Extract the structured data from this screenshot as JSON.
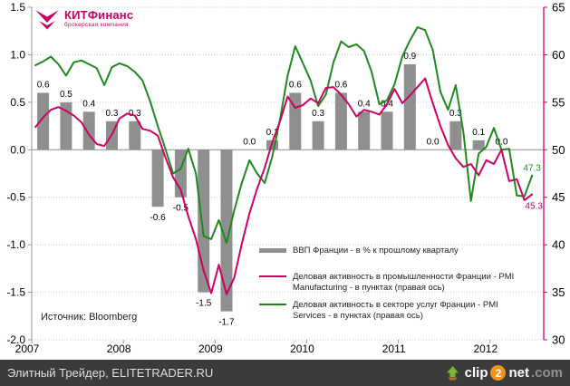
{
  "logo": {
    "brand_bold": "КИТ",
    "brand_rest": "Финанс",
    "tagline": "брокерская компания",
    "color": "#c60063"
  },
  "source_note": "Источник: Bloomberg",
  "footer": {
    "left_text": "Элитный Трейдер, ELITETRADER.RU",
    "clip2net": {
      "part1": "clip",
      "part2": "2",
      "part3": "net",
      "part4": ".com"
    }
  },
  "colors": {
    "bar": "#8f8f8f",
    "manufacturing": "#cf0063",
    "services": "#1e8a1e",
    "grid": "#c9c9c9",
    "axis": "#999999",
    "zero_line": "#8c8c8c",
    "footer_bg": "#3b3b3b",
    "logo": "#c60063",
    "clip2net_orange": "#ef931d"
  },
  "legend": [
    {
      "type": "bar",
      "color": "#8f8f8f",
      "label": "ВВП Франции - в % к прошлому кварталу"
    },
    {
      "type": "line",
      "color": "#cf0063",
      "label": "Деловая активность в промышленности Франции - PMI Manufacturing - в пунктах (правая ось)"
    },
    {
      "type": "line",
      "color": "#1e8a1e",
      "label": "Деловая активность в секторе услуг Франции - PMI Services - в пунктах (правая ось)"
    }
  ],
  "chart_data": {
    "type": "combo-bar-line",
    "x_axis": {
      "years": [
        "2007",
        "2008",
        "2009",
        "2010",
        "2011",
        "2012"
      ],
      "months_per_year": 12,
      "n_months": 66
    },
    "left_axis": {
      "ticks": [
        "1.5",
        "1.0",
        "0.5",
        "0.0",
        "-0.5",
        "-1.0",
        "-1.5",
        "-2.0"
      ],
      "min": -2.0,
      "max": 1.5
    },
    "right_axis": {
      "ticks": [
        "65",
        "60",
        "55",
        "50",
        "45",
        "40",
        "35",
        "30"
      ],
      "min": 30,
      "max": 65
    },
    "grid": "dotted horizontal lines, solid line at 0.0 / 50",
    "bars": {
      "name": "ВВП Франции - в % к прошлому кварталу",
      "period": "quarterly",
      "values": [
        0.6,
        0.5,
        0.4,
        0.3,
        0.3,
        -0.6,
        -0.5,
        -1.5,
        -1.7,
        0.0,
        0.1,
        0.6,
        0.3,
        0.6,
        0.4,
        0.4,
        0.9,
        0.0,
        0.3,
        0.1,
        0.0
      ],
      "labels": [
        "0.6",
        "0.5",
        "0.4",
        "0.3",
        "0.3",
        "-0.6",
        "-0.5",
        "-1.5",
        "-1.7",
        "0.0",
        "0.1",
        "0.6",
        "0.3",
        "0.6",
        "0.4",
        "0.4",
        "0.9",
        "0.0",
        "0.3",
        "0.1",
        "0.0"
      ]
    },
    "line_manufacturing": {
      "name": "Деловая активность в промышленности Франции - PMI Manufacturing - в пунктах (правая ось)",
      "axis": "right",
      "end_label": "45.3",
      "monthly_values": [
        52.4,
        53.4,
        54.2,
        54.5,
        54.1,
        53.6,
        52.9,
        51.6,
        50.6,
        50.4,
        51.6,
        53.3,
        53.8,
        53.6,
        52.2,
        52.0,
        51.5,
        49.2,
        47.1,
        45.8,
        43.0,
        40.6,
        37.3,
        34.9,
        37.9,
        34.8,
        36.5,
        40.1,
        43.3,
        45.9,
        48.1,
        50.8,
        53.0,
        55.6,
        54.4,
        54.7,
        55.4,
        54.9,
        56.5,
        56.6,
        55.8,
        54.8,
        53.5,
        54.2,
        54.0,
        53.7,
        54.8,
        56.4,
        54.9,
        55.7,
        56.6,
        57.5,
        54.9,
        52.5,
        50.5,
        49.1,
        48.2,
        48.5,
        47.3,
        48.9,
        48.5,
        50.0,
        46.7,
        46.9,
        44.7,
        45.3
      ]
    },
    "line_services": {
      "name": "Деловая активность в секторе услуг Франции - PMI Services - в пунктах (правая ось)",
      "axis": "right",
      "end_label": "47.3",
      "monthly_values": [
        58.9,
        59.3,
        59.8,
        59.0,
        57.8,
        59.2,
        59.4,
        59.0,
        58.6,
        56.8,
        58.7,
        59.1,
        58.8,
        58.2,
        57.3,
        55.1,
        52.5,
        50.1,
        47.5,
        48.0,
        50.1,
        47.5,
        40.9,
        40.6,
        42.6,
        40.2,
        43.6,
        46.5,
        48.9,
        47.5,
        46.5,
        49.3,
        53.2,
        57.8,
        60.9,
        59.1,
        57.3,
        54.6,
        55.8,
        59.2,
        61.4,
        60.8,
        61.1,
        60.4,
        58.2,
        54.8,
        55.2,
        56.9,
        59.8,
        61.5,
        62.9,
        62.6,
        60.5,
        56.1,
        54.2,
        56.8,
        51.9,
        44.6,
        49.6,
        50.3,
        52.3,
        50.0,
        50.1,
        45.2,
        45.1,
        47.3
      ]
    }
  }
}
